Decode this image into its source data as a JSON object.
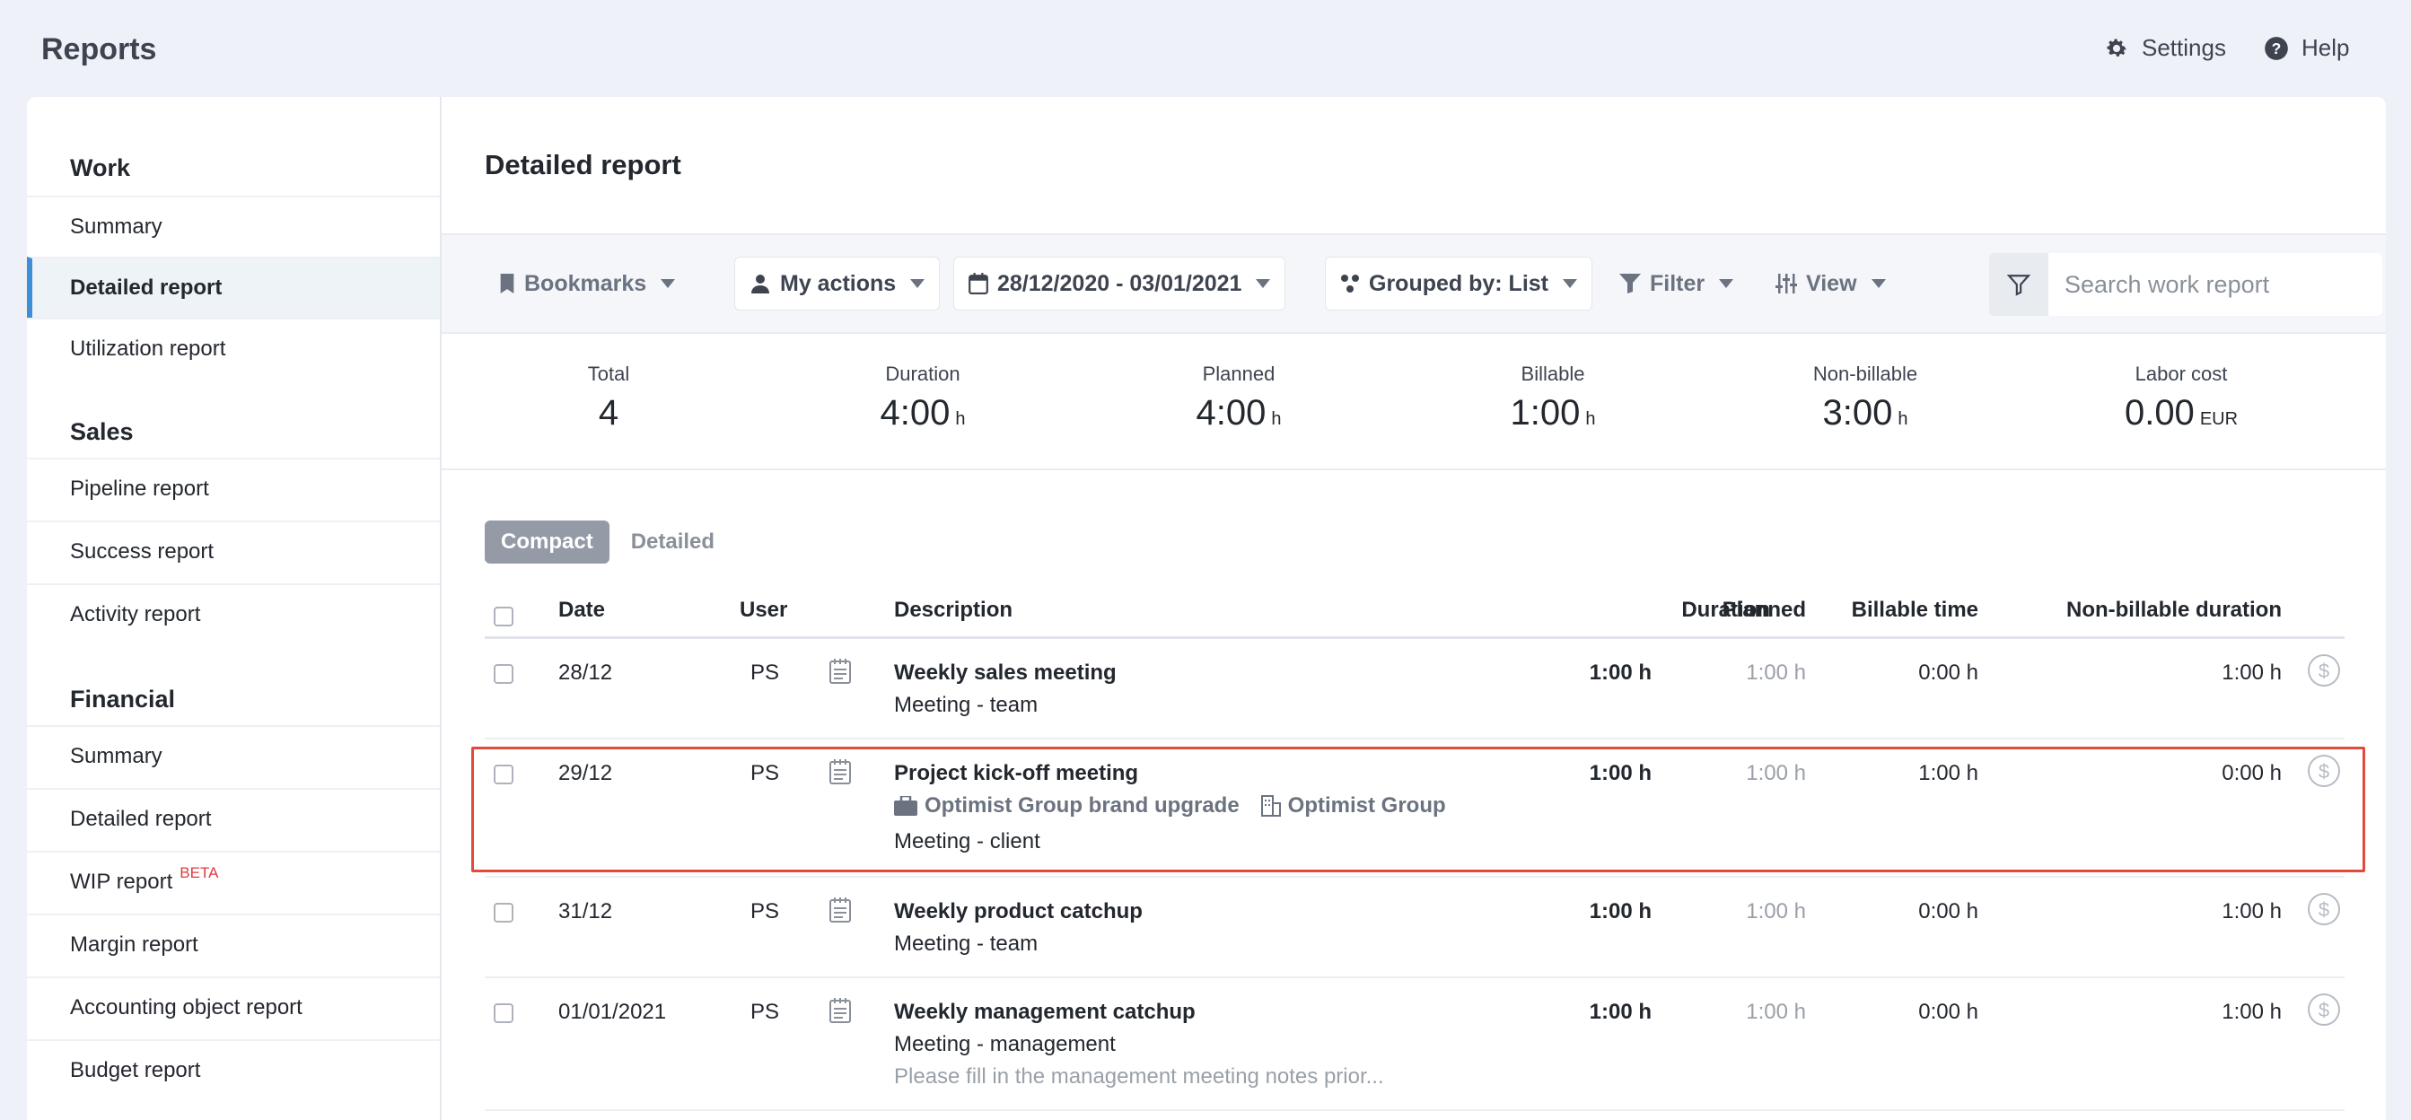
{
  "app": {
    "title": "Reports"
  },
  "top_actions": {
    "settings": "Settings",
    "help": "Help"
  },
  "sidebar": {
    "work": {
      "title": "Work",
      "items": [
        "Summary",
        "Detailed report",
        "Utilization report"
      ]
    },
    "sales": {
      "title": "Sales",
      "items": [
        "Pipeline report",
        "Success report",
        "Activity report"
      ]
    },
    "financial": {
      "title": "Financial",
      "items": [
        "Summary",
        "Detailed report",
        "WIP report",
        "Margin report",
        "Accounting object report",
        "Budget report"
      ],
      "beta": "BETA"
    }
  },
  "page": {
    "title": "Detailed report"
  },
  "toolbar": {
    "bookmarks": "Bookmarks",
    "my_actions": "My actions",
    "date_range": "28/12/2020 - 03/01/2021",
    "grouped": "Grouped by: List",
    "filter": "Filter",
    "view": "View",
    "search_placeholder": "Search work report"
  },
  "stats": [
    {
      "label": "Total",
      "value": "4",
      "unit": ""
    },
    {
      "label": "Duration",
      "value": "4:00",
      "unit": "h"
    },
    {
      "label": "Planned",
      "value": "4:00",
      "unit": "h"
    },
    {
      "label": "Billable",
      "value": "1:00",
      "unit": "h"
    },
    {
      "label": "Non-billable",
      "value": "3:00",
      "unit": "h"
    },
    {
      "label": "Labor cost",
      "value": "0.00",
      "unit": "EUR"
    }
  ],
  "view_toggle": {
    "compact": "Compact",
    "detailed": "Detailed"
  },
  "table": {
    "headers": {
      "date": "Date",
      "user": "User",
      "description": "Description",
      "duration": "Duration",
      "planned": "Planned",
      "billable": "Billable time",
      "nonbillable": "Non-billable duration"
    },
    "rows": [
      {
        "date": "28/12",
        "user": "PS",
        "title": "Weekly sales meeting",
        "type": "Meeting - team",
        "duration": "1:00 h",
        "planned": "1:00 h",
        "billable": "0:00 h",
        "nonbillable": "1:00 h"
      },
      {
        "date": "29/12",
        "user": "PS",
        "title": "Project kick-off meeting",
        "project": "Optimist Group brand upgrade",
        "company": "Optimist Group",
        "type": "Meeting - client",
        "duration": "1:00 h",
        "planned": "1:00 h",
        "billable": "1:00 h",
        "nonbillable": "0:00 h"
      },
      {
        "date": "31/12",
        "user": "PS",
        "title": "Weekly product catchup",
        "type": "Meeting - team",
        "duration": "1:00 h",
        "planned": "1:00 h",
        "billable": "0:00 h",
        "nonbillable": "1:00 h"
      },
      {
        "date": "01/01/2021",
        "user": "PS",
        "title": "Weekly management catchup",
        "type": "Meeting - management",
        "note": "Please fill in the management meeting notes prior...",
        "duration": "1:00 h",
        "planned": "1:00 h",
        "billable": "0:00 h",
        "nonbillable": "1:00 h"
      }
    ]
  }
}
